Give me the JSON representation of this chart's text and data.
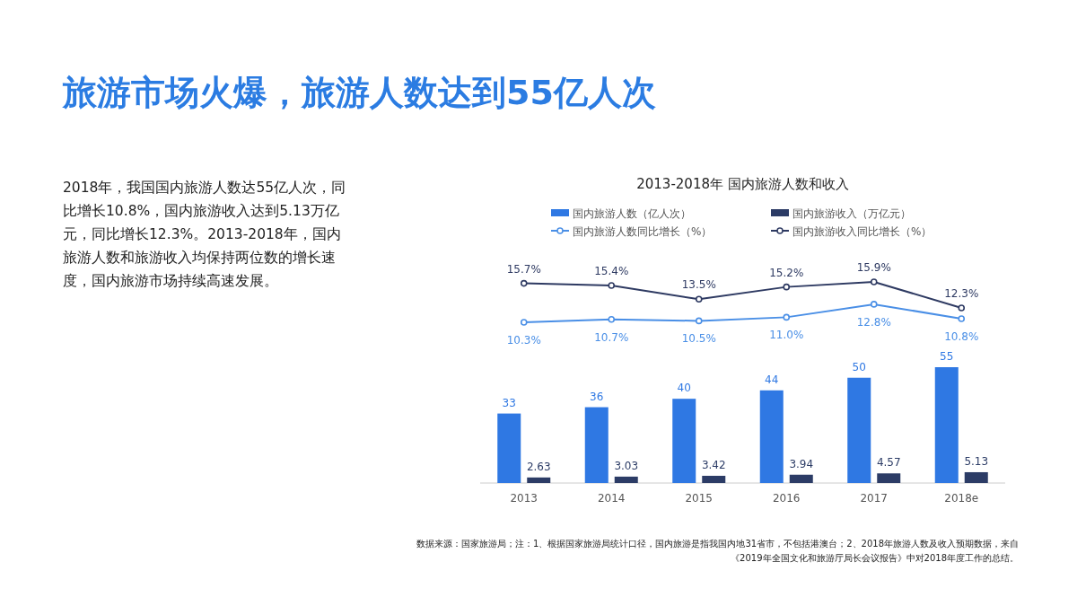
{
  "chart_data": [
    {
      "type": "line",
      "title": "旅游市场火爆，旅游人数达到55亿人次",
      "subtitle": "2013-2018年 国内旅游人数和收入",
      "categories": [
        null,
        null,
        null,
        null,
        null,
        null
      ],
      "series": [
        {
          "name": "国内旅游人数同比增长（%）",
          "color": "#4a8fe6",
          "values": [
            10.3,
            10.7,
            10.5,
            11.0,
            12.8,
            10.8
          ],
          "value_labels": [
            "10.3%",
            "10.7%",
            "10.5%",
            "11.0%",
            "12.8%",
            "10.8%"
          ]
        },
        {
          "name": "国内旅游收入同比增长（%）",
          "color": "#2e3a62",
          "values": [
            15.7,
            15.4,
            13.5,
            15.2,
            15.9,
            12.3
          ],
          "value_labels": [
            "15.7%",
            "15.4%",
            "13.5%",
            "15.2%",
            "15.9%",
            "12.3%"
          ]
        }
      ],
      "tick_labels": false,
      "marker": "circle",
      "legend": "top",
      "annotations": [
        "2018年，我国国内旅游人数达55亿人次，同比增长10.8%，国内旅游收入达到5.13万亿元，同比增长12.3%。2013-2018年，国内旅游人数和旅游收入均保持两位数的增长速度，国内旅游市场持续高速发展。",
        "数据来源：国家旅游局；注：1、根据国家旅游局统计口径，国内旅游是指我国内地31省市，不包括港澳台；2、2018年旅游人数及收入预期数据，来自《2019年全国文化和旅游厅局长会议报告》中对2018年度工作的总结。"
      ]
    },
    {
      "type": "bar",
      "categories": [
        "2013",
        "2014",
        "2015",
        "2016",
        "2017",
        "2018e"
      ],
      "series": [
        {
          "name": "国内旅游人数（亿人次）",
          "color": "#2f78e3",
          "values": [
            33,
            36,
            40,
            44,
            50,
            55
          ]
        },
        {
          "name": "国内旅游收入（万亿元）",
          "color": "#2c3c66",
          "values": [
            2.63,
            3.03,
            3.42,
            3.94,
            4.57,
            5.13
          ]
        }
      ],
      "tick_labels": "x",
      "data_labels": true,
      "legend": "top"
    }
  ]
}
